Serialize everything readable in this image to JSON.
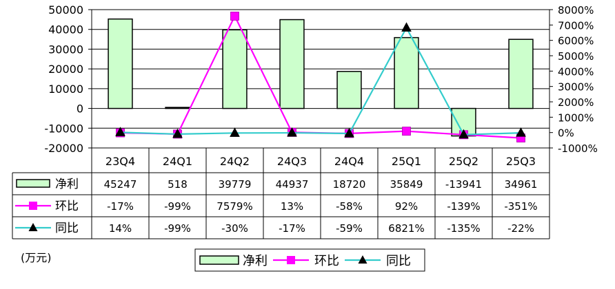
{
  "chart_data": {
    "type": "bar",
    "categories": [
      "23Q4",
      "24Q1",
      "24Q2",
      "24Q3",
      "24Q4",
      "25Q1",
      "25Q2",
      "25Q3"
    ],
    "series": [
      {
        "name": "净利",
        "kind": "bar",
        "axis": "left",
        "color": "#ccffcc",
        "values": [
          45247,
          518,
          39779,
          44937,
          18720,
          35849,
          -13941,
          34961
        ],
        "labels": [
          "45247",
          "518",
          "39779",
          "44937",
          "18720",
          "35849",
          "-13941",
          "34961"
        ]
      },
      {
        "name": "环比",
        "kind": "line",
        "axis": "right",
        "color": "#ff00ff",
        "marker": "square",
        "values": [
          -17,
          -99,
          7579,
          13,
          -58,
          92,
          -139,
          -351
        ],
        "labels": [
          "-17%",
          "-99%",
          "7579%",
          "13%",
          "-58%",
          "92%",
          "-139%",
          "-351%"
        ]
      },
      {
        "name": "同比",
        "kind": "line",
        "axis": "right",
        "color": "#33cccc",
        "marker": "triangle",
        "values": [
          14,
          -99,
          -30,
          -17,
          -59,
          6821,
          -135,
          -22
        ],
        "labels": [
          "14%",
          "-99%",
          "-30%",
          "-17%",
          "-59%",
          "6821%",
          "-135%",
          "-22%"
        ]
      }
    ],
    "y_left": {
      "min": -20000,
      "max": 50000,
      "step": 10000,
      "ticks": [
        "50000",
        "40000",
        "30000",
        "20000",
        "10000",
        "0",
        "-10000",
        "-20000"
      ]
    },
    "y_right": {
      "min": -1000,
      "max": 8000,
      "step": 1000,
      "ticks": [
        "8000%",
        "7000%",
        "6000%",
        "5000%",
        "4000%",
        "3000%",
        "2000%",
        "1000%",
        "0%",
        "-1000%"
      ]
    },
    "unit_note": "(万元)",
    "grid": true,
    "legend_position": "bottom"
  }
}
